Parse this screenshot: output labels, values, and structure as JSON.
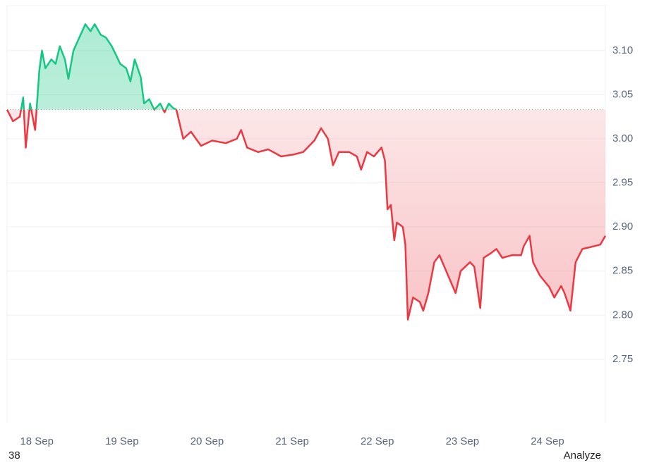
{
  "chart_data": {
    "type": "line",
    "x": [
      17.65,
      17.72,
      17.8,
      17.84,
      17.87,
      17.92,
      17.98,
      18.03,
      18.06,
      18.1,
      18.17,
      18.22,
      18.27,
      18.33,
      18.37,
      18.43,
      18.5,
      18.57,
      18.63,
      18.68,
      18.75,
      18.81,
      18.88,
      18.93,
      18.98,
      19.05,
      19.1,
      19.15,
      19.22,
      19.26,
      19.32,
      19.38,
      19.45,
      19.5,
      19.55,
      19.6,
      19.64,
      19.72,
      19.81,
      19.93,
      20.06,
      20.22,
      20.35,
      20.4,
      20.47,
      20.6,
      20.72,
      20.87,
      21.01,
      21.13,
      21.26,
      21.34,
      21.42,
      21.48,
      21.55,
      21.67,
      21.76,
      21.81,
      21.88,
      21.96,
      22.05,
      22.09,
      22.12,
      22.16,
      22.2,
      22.23,
      22.3,
      22.33,
      22.36,
      22.42,
      22.5,
      22.54,
      22.6,
      22.67,
      22.73,
      22.81,
      22.92,
      22.98,
      23.09,
      23.14,
      23.21,
      23.25,
      23.33,
      23.4,
      23.47,
      23.58,
      23.69,
      23.72,
      23.79,
      23.83,
      23.91,
      24.02,
      24.08,
      24.16,
      24.2,
      24.27,
      24.33,
      24.41,
      24.54,
      24.62,
      24.68
    ],
    "values": [
      3.033,
      3.02,
      3.025,
      3.047,
      2.99,
      3.04,
      3.01,
      3.078,
      3.1,
      3.08,
      3.09,
      3.085,
      3.105,
      3.09,
      3.068,
      3.1,
      3.115,
      3.13,
      3.122,
      3.13,
      3.118,
      3.115,
      3.105,
      3.095,
      3.085,
      3.08,
      3.065,
      3.09,
      3.07,
      3.04,
      3.045,
      3.033,
      3.04,
      3.03,
      3.04,
      3.035,
      3.033,
      3.0,
      3.008,
      2.992,
      2.998,
      2.995,
      3.0,
      3.01,
      2.99,
      2.985,
      2.988,
      2.98,
      2.982,
      2.985,
      2.998,
      3.012,
      3.0,
      2.97,
      2.985,
      2.985,
      2.98,
      2.965,
      2.985,
      2.98,
      2.99,
      2.975,
      2.92,
      2.925,
      2.885,
      2.905,
      2.9,
      2.88,
      2.795,
      2.82,
      2.815,
      2.805,
      2.825,
      2.86,
      2.868,
      2.85,
      2.825,
      2.85,
      2.86,
      2.855,
      2.808,
      2.865,
      2.87,
      2.875,
      2.865,
      2.868,
      2.868,
      2.878,
      2.89,
      2.86,
      2.845,
      2.832,
      2.82,
      2.833,
      2.825,
      2.805,
      2.86,
      2.875,
      2.878,
      2.88,
      2.89
    ],
    "baseline": 3.033,
    "up_color": "#16c784",
    "down_color": "#ea3943",
    "xlim": [
      17.65,
      24.68
    ],
    "xticks": [
      {
        "value": 18,
        "label": "18 Sep"
      },
      {
        "value": 19,
        "label": "19 Sep"
      },
      {
        "value": 20,
        "label": "20 Sep"
      },
      {
        "value": 21,
        "label": "21 Sep"
      },
      {
        "value": 22,
        "label": "22 Sep"
      },
      {
        "value": 23,
        "label": "23 Sep"
      },
      {
        "value": 24,
        "label": "24 Sep"
      }
    ],
    "ylim": [
      2.678,
      3.151
    ],
    "yticks": [
      2.75,
      {
        "value": 2.8,
        "label": "2.80"
      },
      2.85,
      {
        "value": 2.9,
        "label": "2.90"
      },
      2.95,
      {
        "value": 3.0,
        "label": "3.00"
      },
      3.05,
      {
        "value": 3.1,
        "label": "3.10"
      }
    ],
    "grid": true
  },
  "footer": {
    "left": "38",
    "right": "Analyze"
  }
}
